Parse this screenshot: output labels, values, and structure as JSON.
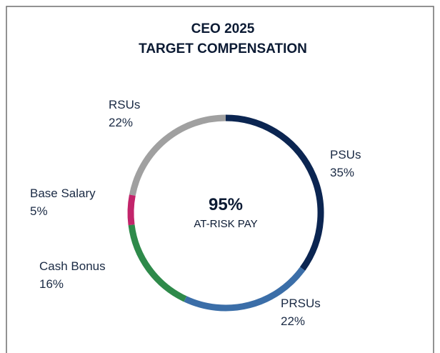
{
  "chart_data": {
    "type": "donut",
    "title": [
      "CEO 2025",
      "TARGET COMPENSATION"
    ],
    "center_text": [
      "95%",
      "AT-RISK PAY"
    ],
    "categories": [
      "PSUs",
      "PRSUs",
      "Cash Bonus",
      "Base Salary",
      "RSUs"
    ],
    "values": [
      35,
      22,
      16,
      5,
      22
    ],
    "value_labels": [
      "35%",
      "22%",
      "16%",
      "5%",
      "22%"
    ],
    "colors": [
      "#0b2551",
      "#3b6ea8",
      "#2e8a4a",
      "#c2246a",
      "#a0a0a0"
    ]
  }
}
